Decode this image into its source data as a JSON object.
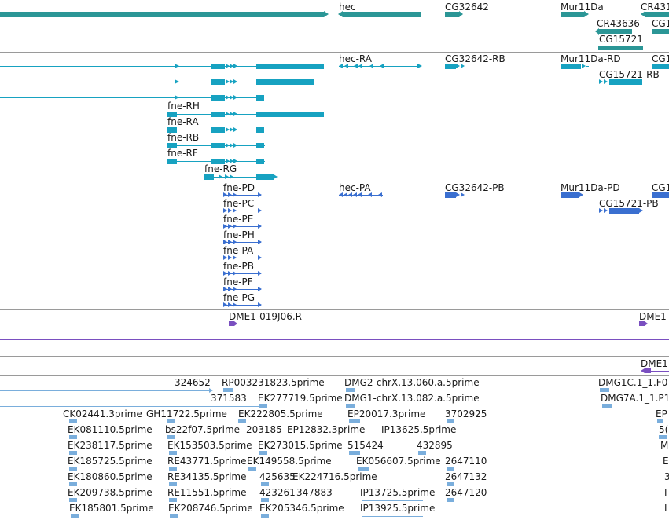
{
  "colors": {
    "gene": "#2b9696",
    "transcript": "#17a2c1",
    "protein": "#3a6fd0",
    "probe": "#7a4fc0",
    "est": "#7aaedc",
    "separator": "#9a9a9a",
    "text": "#1a1a1a"
  },
  "tracks": {
    "genes": {
      "labels": [
        "hec",
        "CG32642",
        "Mur11Da",
        "CR431",
        "CR43636",
        "CG1",
        "CG15721"
      ]
    },
    "transcripts": {
      "labels": [
        "hec-RA",
        "CG32642-RB",
        "Mur11Da-RD",
        "CG1",
        "CG15721-RB",
        "fne-RH",
        "fne-RA",
        "fne-RB",
        "fne-RF",
        "fne-RG"
      ]
    },
    "proteins": {
      "labels": [
        "fne-PD",
        "hec-PA",
        "CG32642-PB",
        "Mur11Da-PD",
        "CG1",
        "CG15721-PB",
        "fne-PC",
        "fne-PE",
        "fne-PH",
        "fne-PA",
        "fne-PB",
        "fne-PF",
        "fne-PG"
      ]
    },
    "probes": {
      "labels": [
        "DME1-019J06.R",
        "DME1-"
      ]
    },
    "probes2": {
      "labels": [
        "DME1-"
      ]
    },
    "ests": {
      "labels": [
        "324652",
        "RP003231823.5prime",
        "DMG2-chrX.13.060.a.5prime",
        "DMG1C.1_1.F0",
        "371583",
        "EK277719.5prime",
        "DMG1-chrX.13.082.a.5prime",
        "DMG7A.1_1.P1",
        "CK02441.3prime",
        "GH11722.5prime",
        "EK222805.5prime",
        "EP20017.3prime",
        "3702925",
        "EP",
        "EK081110.5prime",
        "bs22f07.5prime",
        "203185",
        "EP12832.3prime",
        "IP13625.5prime",
        "5(",
        "EK238117.5prime",
        "EK153503.5prime",
        "EK273015.5prime",
        "515424",
        "432895",
        "M",
        "EK185725.5prime",
        "RE43771.5prime",
        "EK149558.5prime",
        "EK056607.5prime",
        "2647110",
        "E",
        "EK180860.5prime",
        "RE34135.5prime",
        "425635",
        "EK224716.5prime",
        "2647132",
        "3",
        "EK209738.5prime",
        "RE11551.5prime",
        "423261",
        "347883",
        "IP13725.5prime",
        "2647120",
        "I",
        "EK185801.5prime",
        "EK208746.5prime",
        "EK205346.5prime",
        "IP13925.5prime",
        "I"
      ]
    }
  }
}
